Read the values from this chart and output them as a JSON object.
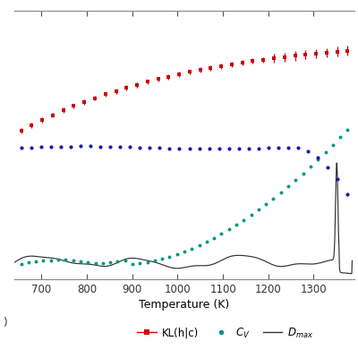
{
  "x_min": 640,
  "x_max": 1390,
  "x_ticks": [
    700,
    800,
    900,
    1000,
    1100,
    1200,
    1300
  ],
  "xlabel": "Temperature (K)",
  "red_color": "#cc0000",
  "blue_color": "#1a1aaa",
  "teal_color": "#009980",
  "black_color": "#333333",
  "background_color": "#ffffff",
  "figsize": [
    4.0,
    4.0
  ],
  "dpi": 100
}
